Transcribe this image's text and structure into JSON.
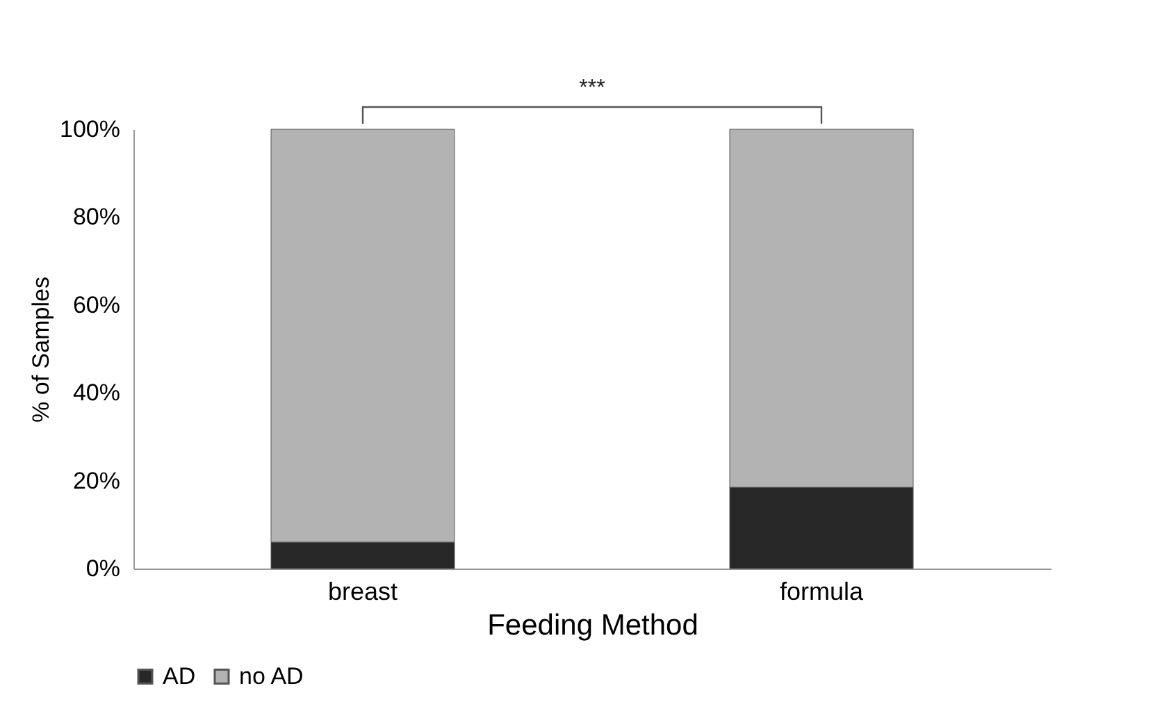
{
  "chart_data": {
    "type": "bar",
    "stacked": true,
    "xlabel": "Feeding Method",
    "ylabel": "% of Samples",
    "categories": [
      "breast",
      "formula"
    ],
    "series": [
      {
        "name": "AD",
        "color": "#282828",
        "values": [
          6,
          18.5
        ]
      },
      {
        "name": "no AD",
        "color": "#b3b3b3",
        "values": [
          94,
          81.5
        ]
      }
    ],
    "ylim": [
      0,
      100
    ],
    "yticks": [
      {
        "value": 0,
        "label": "0%"
      },
      {
        "value": 20,
        "label": "20%"
      },
      {
        "value": 40,
        "label": "40%"
      },
      {
        "value": 60,
        "label": "60%"
      },
      {
        "value": 80,
        "label": "80%"
      },
      {
        "value": 100,
        "label": "100%"
      }
    ],
    "grid": false,
    "legend": "bottom",
    "annotations": [
      "***"
    ]
  }
}
